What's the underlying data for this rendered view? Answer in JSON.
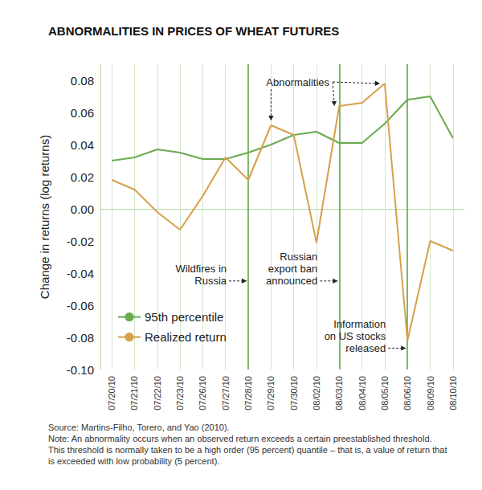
{
  "chart_data": {
    "type": "line",
    "title": "ABNORMALITIES IN PRICES OF WHEAT FUTURES",
    "y_label": "Change in returns (log returns)",
    "categories": [
      "07/20/10",
      "07/21/10",
      "07/22/10",
      "07/23/10",
      "07/26/10",
      "07/27/10",
      "07/28/10",
      "07/29/10",
      "07/30/10",
      "08/02/10",
      "08/03/10",
      "08/04/10",
      "08/05/10",
      "08/06/10",
      "08/09/10",
      "08/10/10"
    ],
    "series": [
      {
        "name": "95th percentile",
        "color": "#6aab4f",
        "values": [
          0.03,
          0.032,
          0.037,
          0.035,
          0.031,
          0.031,
          0.035,
          0.04,
          0.046,
          0.048,
          0.041,
          0.041,
          0.053,
          0.068,
          0.07,
          0.044
        ]
      },
      {
        "name": "Realized return",
        "color": "#d6a04a",
        "values": [
          0.018,
          0.012,
          -0.002,
          -0.013,
          0.008,
          0.032,
          0.018,
          0.052,
          0.046,
          -0.021,
          0.064,
          0.066,
          0.078,
          -0.082,
          -0.02,
          -0.026
        ]
      }
    ],
    "ylim": [
      -0.1,
      0.09
    ],
    "yticks": [
      {
        "value": -0.1,
        "label": "-0.10"
      },
      -0.08,
      -0.06,
      -0.04,
      -0.02,
      {
        "value": 0,
        "label": "0.00"
      },
      0.02,
      0.04,
      0.06,
      0.08
    ],
    "grid": true,
    "legend": "lower left",
    "marker": "none",
    "line_style": "solid",
    "events": [
      {
        "date": "07/28/10",
        "text": "Wildfires in\nRussia"
      },
      {
        "date": "08/03/10",
        "text": "Russian\nexport ban\nannounced"
      },
      {
        "date": "08/06/10",
        "text": "Information\non US stocks\nreleased"
      }
    ],
    "annotations": [
      {
        "text": "Abnormalities",
        "series": "Realized return",
        "dates": [
          "07/29/10",
          "08/03/10",
          "08/05/10"
        ]
      }
    ],
    "source": "Source: Martins-Filho, Torero, and Yao (2010).",
    "note": "Note: An abnormality occurs when an observed return exceeds a certain preestablished threshold. This threshold is normally taken to be a high order (95 percent) quantile – that is, a value of return that is exceeded with low probability (5 percent)."
  }
}
